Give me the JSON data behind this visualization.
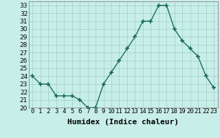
{
  "x": [
    0,
    1,
    2,
    3,
    4,
    5,
    6,
    7,
    8,
    9,
    10,
    11,
    12,
    13,
    14,
    15,
    16,
    17,
    18,
    19,
    20,
    21,
    22,
    23
  ],
  "y": [
    24,
    23,
    23,
    21.5,
    21.5,
    21.5,
    21,
    20,
    20,
    23,
    24.5,
    26,
    27.5,
    29,
    31,
    31,
    33,
    33,
    30,
    28.5,
    27.5,
    26.5,
    24,
    22.5
  ],
  "line_color": "#1a6b5a",
  "marker": "+",
  "marker_size": 4,
  "bg_color": "#c8eee8",
  "grid_color": "#9ecec8",
  "xlabel": "Humidex (Indice chaleur)",
  "xlim": [
    -0.5,
    23.5
  ],
  "ylim": [
    20,
    33.5
  ],
  "yticks": [
    20,
    21,
    22,
    23,
    24,
    25,
    26,
    27,
    28,
    29,
    30,
    31,
    32,
    33
  ],
  "xtick_labels": [
    "0",
    "1",
    "2",
    "3",
    "4",
    "5",
    "6",
    "7",
    "8",
    "9",
    "10",
    "11",
    "12",
    "13",
    "14",
    "15",
    "16",
    "17",
    "18",
    "19",
    "20",
    "21",
    "22",
    "23"
  ],
  "tick_fontsize": 6.5,
  "xlabel_fontsize": 8,
  "linewidth": 1.0
}
